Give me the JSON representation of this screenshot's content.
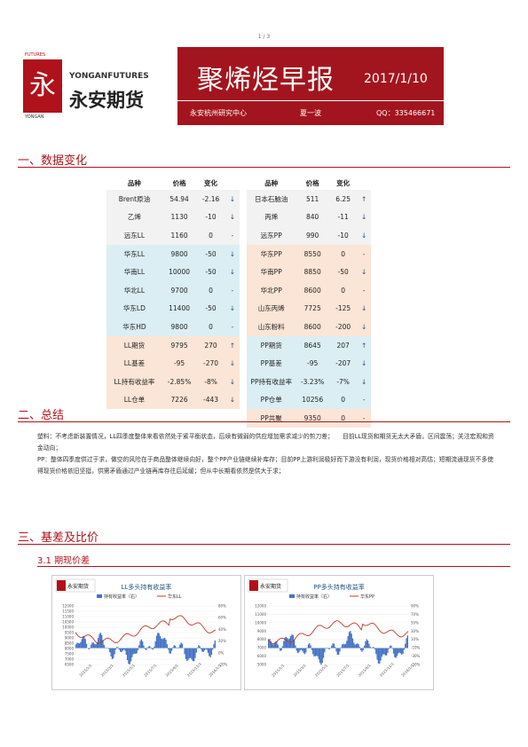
{
  "page_number": "1 / 3",
  "header": {
    "logo_futures": "FUTURES",
    "logo_en": "YONGANFUTURES",
    "logo_cn": "永安期货",
    "logo_yongan": "YONGAN",
    "logo_mark": "永",
    "title": "聚烯烃早报",
    "date": "2017/1/10",
    "org": "永安杭州研究中心",
    "author": "夏一波",
    "qq": "QQ：335466671"
  },
  "sections": {
    "s1": "一、数据变化",
    "s2": "二、总结",
    "s3": "三、基差及比价",
    "s3_1": "3.1 期现价差"
  },
  "table_headers": {
    "name": "品种",
    "price": "价格",
    "change": "变化"
  },
  "left_table": [
    {
      "name": "Brent原油",
      "price": "54.94",
      "change": "-2.16",
      "arrow": "↓",
      "bg": "g"
    },
    {
      "name": "乙烯",
      "price": "1130",
      "change": "-10",
      "arrow": "↓",
      "bg": "g"
    },
    {
      "name": "远东LL",
      "price": "1160",
      "change": "0",
      "arrow": "-",
      "bg": "g"
    },
    {
      "name": "华东LL",
      "price": "9800",
      "change": "-50",
      "arrow": "↓",
      "bg": "b"
    },
    {
      "name": "华南LL",
      "price": "10000",
      "change": "-50",
      "arrow": "↓",
      "bg": "b"
    },
    {
      "name": "华北LL",
      "price": "9700",
      "change": "0",
      "arrow": "-",
      "bg": "b"
    },
    {
      "name": "华东LD",
      "price": "11400",
      "change": "-50",
      "arrow": "↓",
      "bg": "b"
    },
    {
      "name": "华东HD",
      "price": "9800",
      "change": "0",
      "arrow": "-",
      "bg": "b"
    },
    {
      "name": "LL期货",
      "price": "9795",
      "change": "270",
      "arrow": "↑",
      "bg": "o"
    },
    {
      "name": "LL基差",
      "price": "-95",
      "change": "-270",
      "arrow": "↓",
      "bg": "o"
    },
    {
      "name": "LL持有收益率",
      "price": "-2.85%",
      "change": "-8%",
      "arrow": "↓",
      "bg": "o"
    },
    {
      "name": "LL仓单",
      "price": "7226",
      "change": "-443",
      "arrow": "↓",
      "bg": "o"
    }
  ],
  "right_table": [
    {
      "name": "日本石脑油",
      "price": "511",
      "change": "6.25",
      "arrow": "↑",
      "bg": "g"
    },
    {
      "name": "丙烯",
      "price": "840",
      "change": "-11",
      "arrow": "↓",
      "bg": "g"
    },
    {
      "name": "远东PP",
      "price": "990",
      "change": "-10",
      "arrow": "↓",
      "bg": "g"
    },
    {
      "name": "华东PP",
      "price": "8550",
      "change": "0",
      "arrow": "-",
      "bg": "o"
    },
    {
      "name": "华南PP",
      "price": "8850",
      "change": "-50",
      "arrow": "↓",
      "bg": "o"
    },
    {
      "name": "华北PP",
      "price": "8600",
      "change": "0",
      "arrow": "-",
      "bg": "o"
    },
    {
      "name": "山东丙烯",
      "price": "7725",
      "change": "-125",
      "arrow": "↓",
      "bg": "o"
    },
    {
      "name": "山东粉料",
      "price": "8600",
      "change": "-200",
      "arrow": "↓",
      "bg": "o"
    },
    {
      "name": "PP期货",
      "price": "8645",
      "change": "207",
      "arrow": "↑",
      "bg": "b"
    },
    {
      "name": "PP基差",
      "price": "-95",
      "change": "-207",
      "arrow": "↓",
      "bg": "b"
    },
    {
      "name": "PP持有收益率",
      "price": "-3.23%",
      "change": "-7%",
      "arrow": "↓",
      "bg": "b"
    },
    {
      "name": "PP仓单",
      "price": "10256",
      "change": "0",
      "arrow": "-",
      "bg": "b"
    },
    {
      "name": "PP共聚",
      "price": "9350",
      "change": "0",
      "arrow": "-",
      "bg": "o"
    }
  ],
  "summary": [
    "塑料：不考虑新装置情况，LL四季度整体来看依然处于紧平衡状态，后续有微弱的供应增加需求减少的剪刀差；　　目前LL现货和期货无太大矛盾，区间震荡；关注宏观和资金动向；",
    "PP：整体四季度供过于求，做空的风险在于商品整体继续向好，整个PP产业链继续补库存；目前PP上游利润极好而下游没有利润，现货价格相对高估；短期流通现货不多使得现货价格依旧坚挺，供需矛盾通过产业链再库存往后延缓；但从中长期看依然是供大于求；"
  ],
  "charts": [
    {
      "title": "LL多头持有收益率",
      "legend": [
        "持有收益率（右）",
        "华东LL"
      ],
      "logo": "永安期货",
      "left_ticks": [
        "12000",
        "11500",
        "11000",
        "10500",
        "10000",
        "9500",
        "9000",
        "8500",
        "8000",
        "7500",
        "7000",
        "6500"
      ],
      "right_ticks": [
        "80%",
        "60%",
        "40%",
        "20%",
        "0%",
        "-20%"
      ],
      "x_ticks": [
        "2015/1/1",
        "2015/3/1",
        "2015/5/1",
        "2015/7/1",
        "2015/9/1",
        "2015/11/1",
        "2016/1/1"
      ],
      "colors": {
        "bar": "#4472c4",
        "line": "#c0392b"
      }
    },
    {
      "title": "PP多头持有收益率",
      "legend": [
        "持有收益率（右）",
        "华东PP"
      ],
      "logo": "永安期货",
      "left_ticks": [
        "12000",
        "11000",
        "10000",
        "9000",
        "8000",
        "7000",
        "6000",
        "5000"
      ],
      "right_ticks": [
        "90%",
        "70%",
        "50%",
        "30%",
        "10%",
        "-10%",
        "-30%",
        "-50%"
      ],
      "x_ticks": [
        "2015/1/1",
        "2015/3/1",
        "2015/5/1",
        "2015/7/1",
        "2015/9/1",
        "2015/11/1",
        "2016/1/1"
      ],
      "colors": {
        "bar": "#4472c4",
        "line": "#c0392b"
      }
    }
  ]
}
